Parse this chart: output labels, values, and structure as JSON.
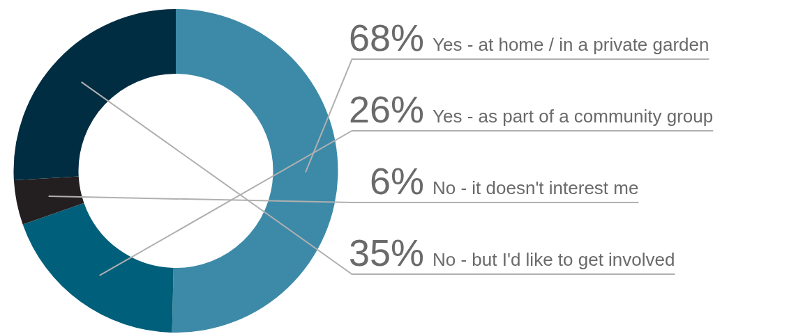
{
  "chart_data": {
    "type": "donut",
    "categories": [
      "Yes - at home / in a private garden",
      "Yes - as part of a community group",
      "No - it doesn't interest me",
      "No - but I'd like to get involved"
    ],
    "values": [
      68,
      26,
      6,
      35
    ],
    "value_labels": [
      "68%",
      "26%",
      "6%",
      "35%"
    ],
    "colors": [
      "#3d8aa8",
      "#005f7a",
      "#231f20",
      "#002d42"
    ],
    "legend": false
  }
}
